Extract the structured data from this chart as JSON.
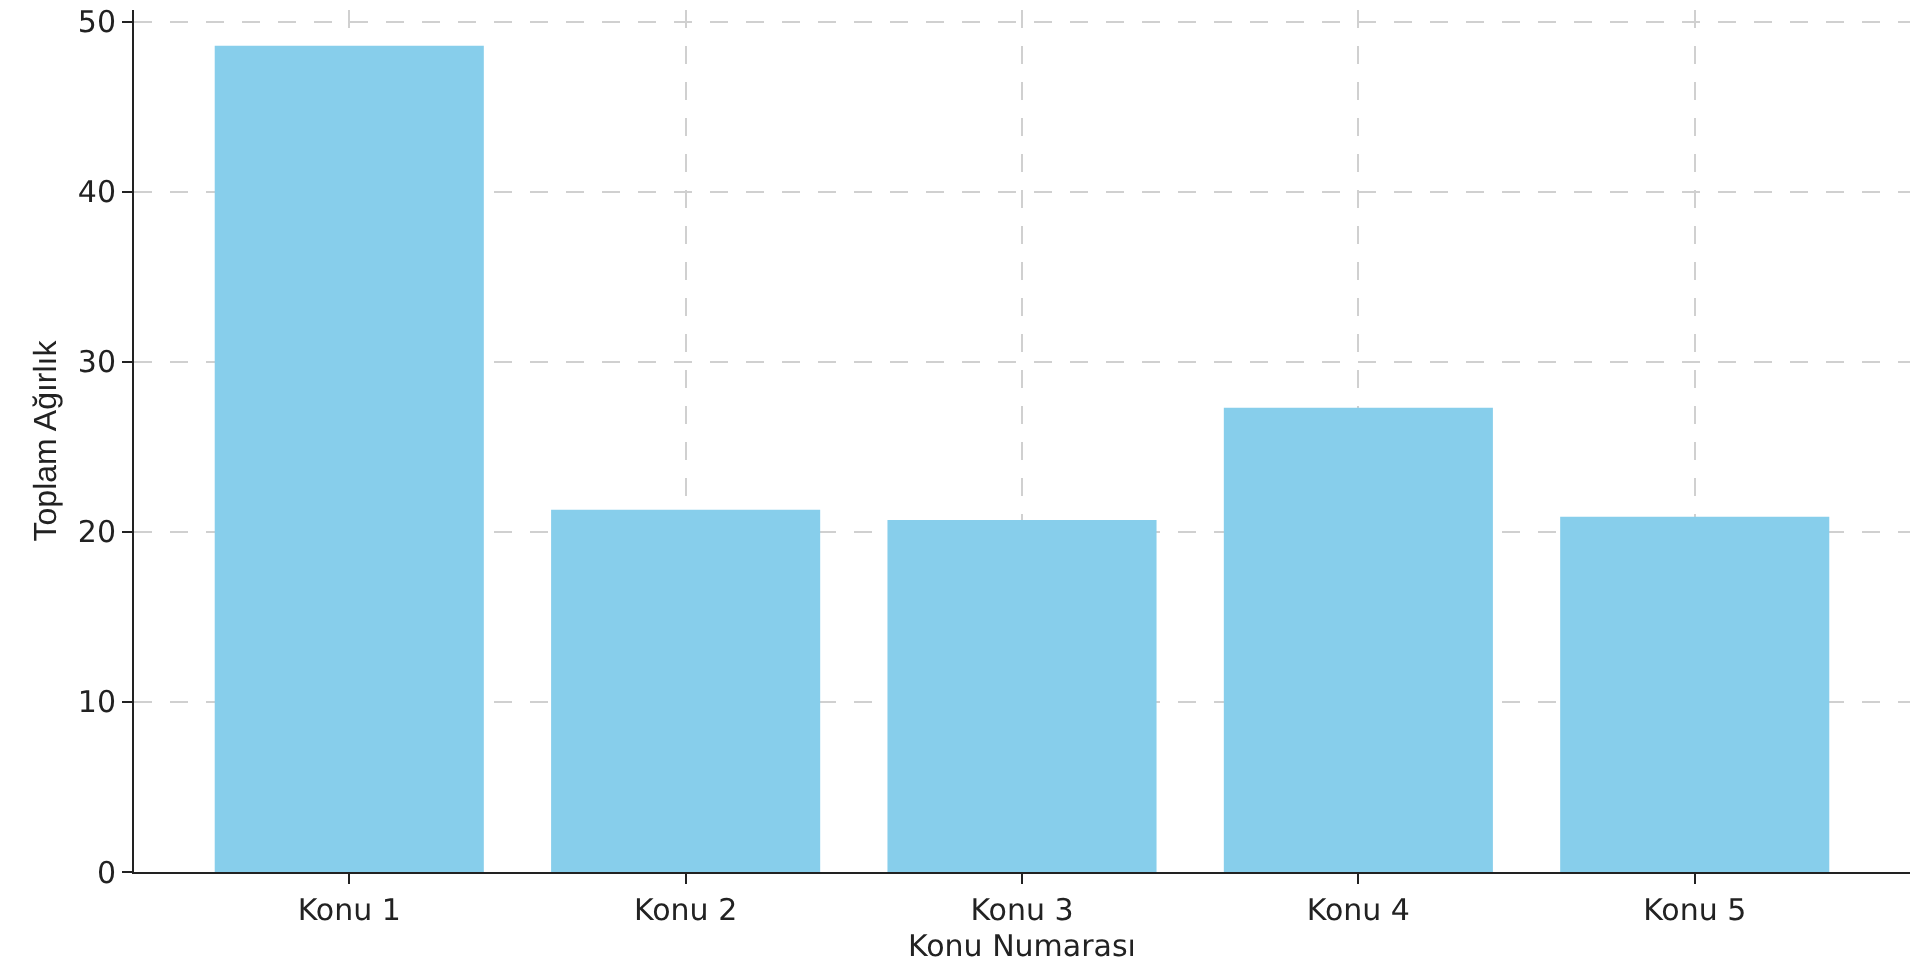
{
  "chart_data": {
    "type": "bar",
    "xlabel": "Konu Numarası",
    "ylabel": "Toplam Ağırlık",
    "categories": [
      "Konu 1",
      "Konu 2",
      "Konu 3",
      "Konu 4",
      "Konu 5"
    ],
    "values": [
      48.6,
      21.3,
      20.7,
      27.3,
      20.9
    ],
    "color": "#87ceeb",
    "ylim": [
      0,
      50.7
    ],
    "yticks": [
      0,
      10,
      20,
      30,
      40,
      50
    ],
    "grid": true
  }
}
